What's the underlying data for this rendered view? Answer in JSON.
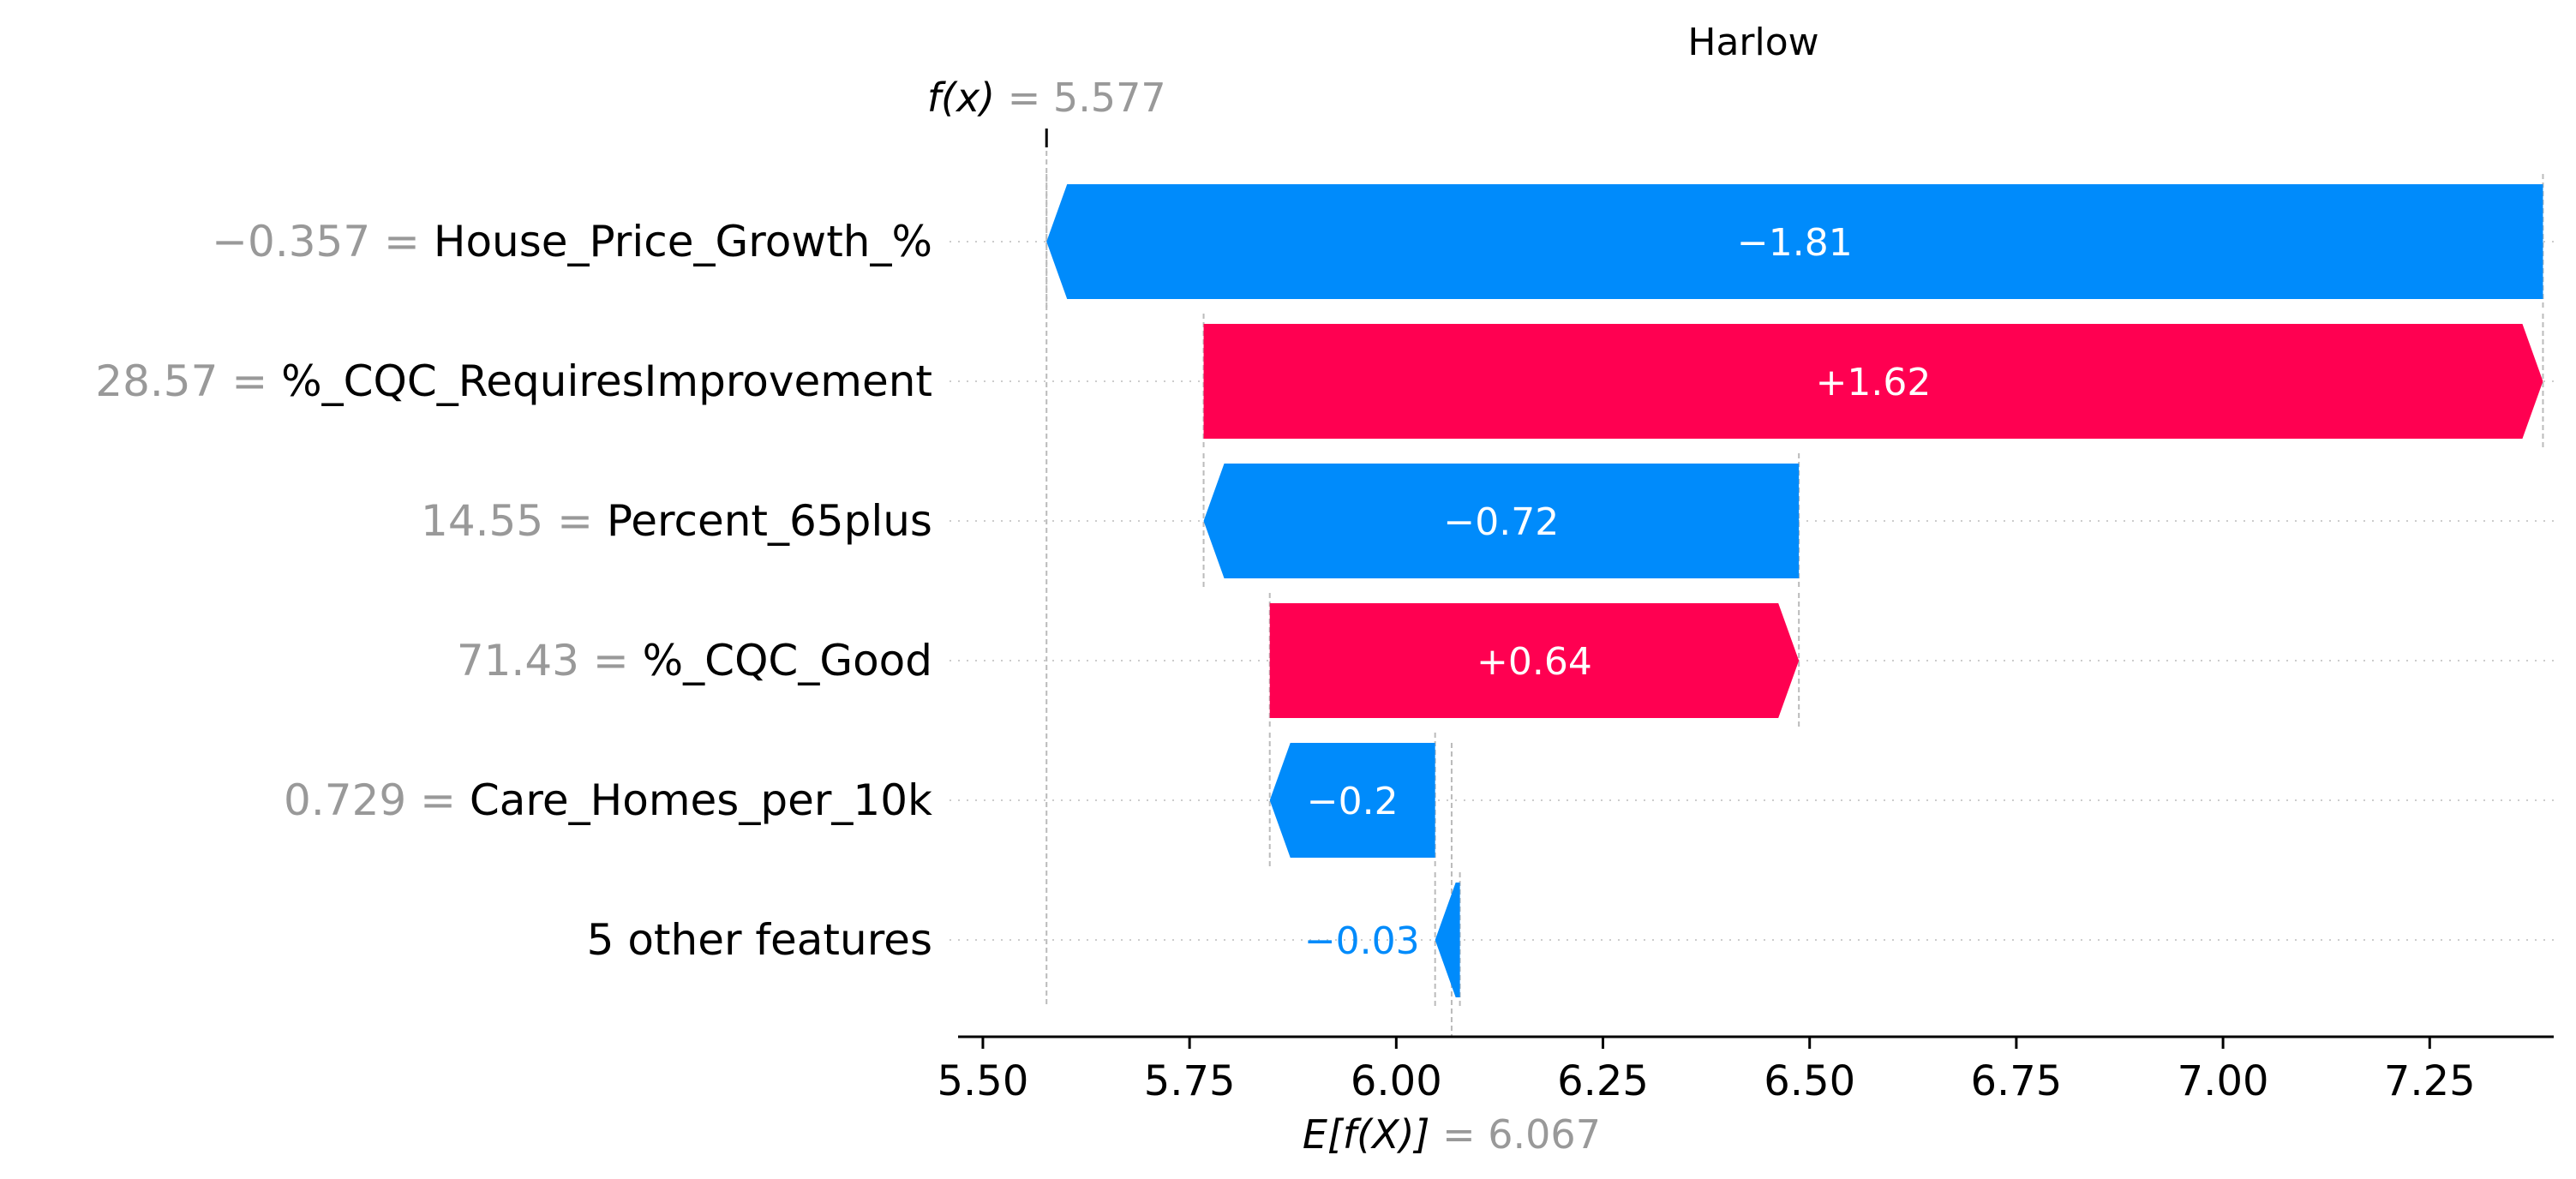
{
  "chart_data": {
    "type": "waterfall",
    "title": "Harlow",
    "colors": {
      "negative": "#008bfb",
      "positive": "#ff0051",
      "muted": "#999999",
      "text": "#000000"
    },
    "base_value": 6.067,
    "base_value_label": "E[f(X)]",
    "base_value_text": "6.067",
    "output_value": 5.577,
    "output_value_label": "f(x)",
    "output_value_text": "5.577",
    "xlim": [
      5.47,
      7.4
    ],
    "x_ticks": [
      5.5,
      5.75,
      6.0,
      6.25,
      6.5,
      6.75,
      7.0,
      7.25
    ],
    "x_tick_labels": [
      "5.50",
      "5.75",
      "6.00",
      "6.25",
      "6.50",
      "6.75",
      "7.00",
      "7.25"
    ],
    "grid": "horizontal-dotted",
    "features": [
      {
        "feature_value": "−0.357",
        "name": "House_Price_Growth_%",
        "contribution": -1.81,
        "label": "−1.81"
      },
      {
        "feature_value": "28.57",
        "name": "%_CQC_RequiresImprovement",
        "contribution": 1.62,
        "label": "+1.62"
      },
      {
        "feature_value": "14.55",
        "name": "Percent_65plus",
        "contribution": -0.72,
        "label": "−0.72"
      },
      {
        "feature_value": "71.43",
        "name": "%_CQC_Good",
        "contribution": 0.64,
        "label": "+0.64"
      },
      {
        "feature_value": "0.729",
        "name": "Care_Homes_per_10k",
        "contribution": -0.2,
        "label": "−0.2"
      },
      {
        "feature_value": "",
        "name": "5 other features",
        "contribution": -0.03,
        "label": "−0.03"
      }
    ]
  }
}
